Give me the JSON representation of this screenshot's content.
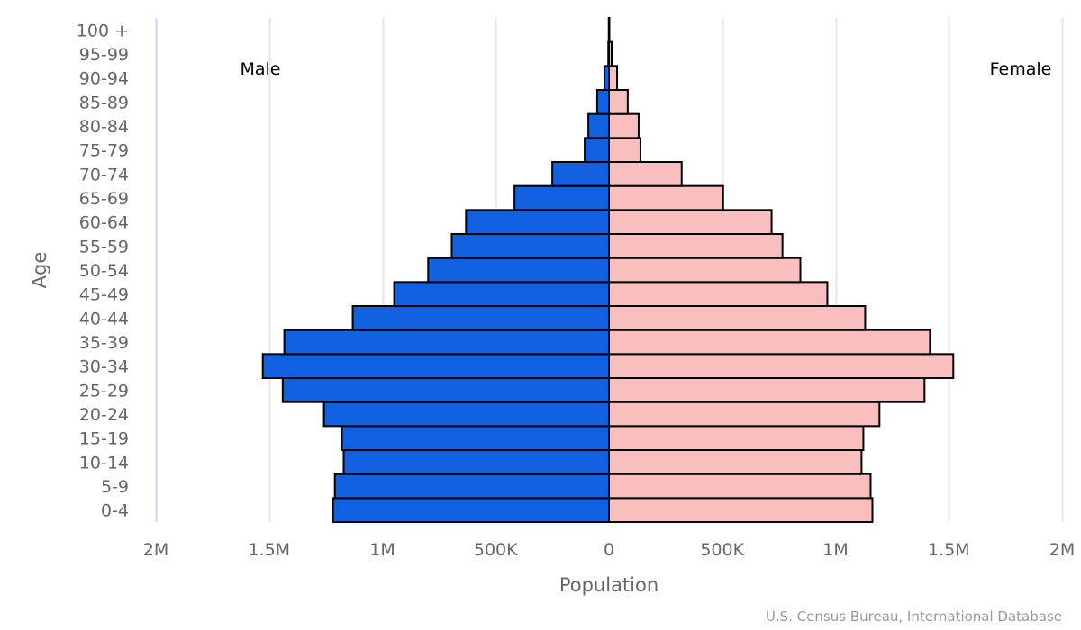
{
  "chart_data": {
    "type": "bar",
    "orientation": "horizontal",
    "subtype": "population-pyramid",
    "categories": [
      "0-4",
      "5-9",
      "10-14",
      "15-19",
      "20-24",
      "25-29",
      "30-34",
      "35-39",
      "40-44",
      "45-49",
      "50-54",
      "55-59",
      "60-64",
      "65-69",
      "70-74",
      "75-79",
      "80-84",
      "85-89",
      "90-94",
      "95-99",
      "100 +"
    ],
    "series": [
      {
        "name": "Male",
        "side": "left",
        "color": "#1060e0",
        "values": [
          1218000,
          1210000,
          1171000,
          1179000,
          1258000,
          1440000,
          1528000,
          1433000,
          1131000,
          948000,
          798000,
          694000,
          631000,
          417000,
          250000,
          107000,
          91000,
          52000,
          20000,
          3000,
          1000
        ]
      },
      {
        "name": "Female",
        "side": "right",
        "color": "#f9bfbf",
        "values": [
          1163000,
          1155000,
          1115000,
          1123000,
          1194000,
          1393000,
          1520000,
          1417000,
          1131000,
          964000,
          845000,
          766000,
          718000,
          504000,
          321000,
          139000,
          131000,
          83000,
          36000,
          12000,
          2000
        ]
      }
    ],
    "xlabel": "Population",
    "ylabel": "Age",
    "xlim": [
      -2000000,
      2000000
    ],
    "x_ticks": [
      {
        "value": -2000000,
        "label": "2M"
      },
      {
        "value": -1500000,
        "label": "1.5M"
      },
      {
        "value": -1000000,
        "label": "1M"
      },
      {
        "value": -500000,
        "label": "500K"
      },
      {
        "value": 0,
        "label": "0"
      },
      {
        "value": 500000,
        "label": "500K"
      },
      {
        "value": 1000000,
        "label": "1M"
      },
      {
        "value": 1500000,
        "label": "1.5M"
      },
      {
        "value": 2000000,
        "label": "2M"
      }
    ],
    "grid": true,
    "annotations": [
      {
        "text": "Male",
        "position": "top-left"
      },
      {
        "text": "Female",
        "position": "top-right"
      }
    ],
    "credit": "U.S. Census Bureau, International Database",
    "bar_border_color": "#000000"
  }
}
